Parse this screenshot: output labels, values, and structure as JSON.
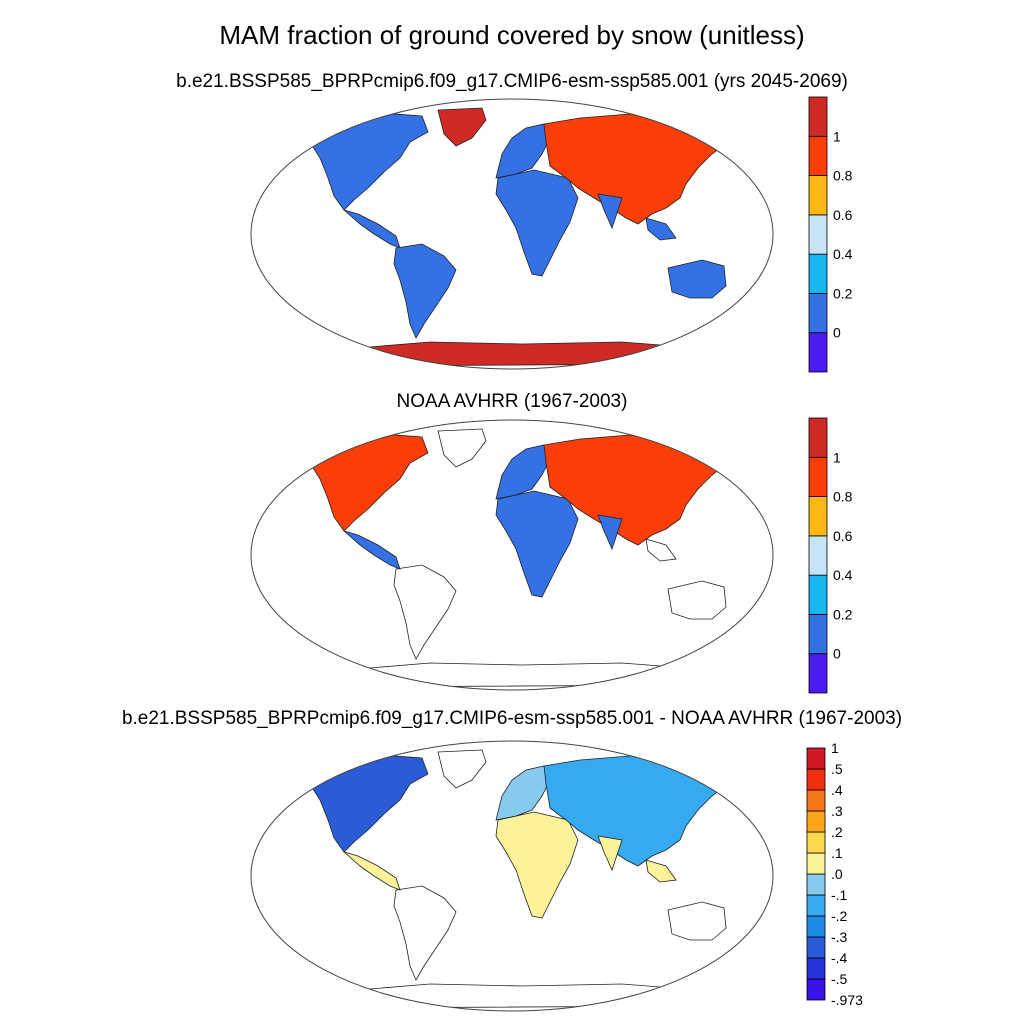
{
  "title": "MAM fraction of ground covered by snow (unitless)",
  "panels": [
    {
      "title": "b.e21.BSSP585_BPRPcmip6.f09_g17.CMIP6-esm-ssp585.001 (yrs 2045-2069)",
      "colorbar": {
        "colors": [
          "#4b1cf2",
          "#3471e4",
          "#18b7f2",
          "#c6e4f6",
          "#fbb812",
          "#fb3e08",
          "#d02a27"
        ],
        "labels": [
          "0",
          "0.2",
          "0.4",
          "0.6",
          "0.8",
          "1"
        ]
      }
    },
    {
      "title": "NOAA AVHRR (1967-2003)",
      "colorbar": {
        "colors": [
          "#4b1cf2",
          "#3471e4",
          "#18b7f2",
          "#c6e4f6",
          "#fbb812",
          "#fb3e08",
          "#d02a27"
        ],
        "labels": [
          "0",
          "0.2",
          "0.4",
          "0.6",
          "0.8",
          "1"
        ]
      }
    },
    {
      "title": "b.e21.BSSP585_BPRPcmip6.f09_g17.CMIP6-esm-ssp585.001 - NOAA AVHRR (1967-2003)",
      "colorbar": {
        "colors": [
          "#3a12e8",
          "#2634dc",
          "#2a5cd8",
          "#1f8be4",
          "#35aaf0",
          "#86cbee",
          "#fbf29a",
          "#fdd84c",
          "#fca51a",
          "#f8741a",
          "#ef2f0e",
          "#cf1a24"
        ],
        "labels": [
          "-.973",
          "-.5",
          "-.4",
          "-.3",
          "-.2",
          "-.1",
          ".0",
          ".1",
          ".2",
          ".3",
          ".4",
          ".5",
          "1"
        ]
      }
    }
  ]
}
